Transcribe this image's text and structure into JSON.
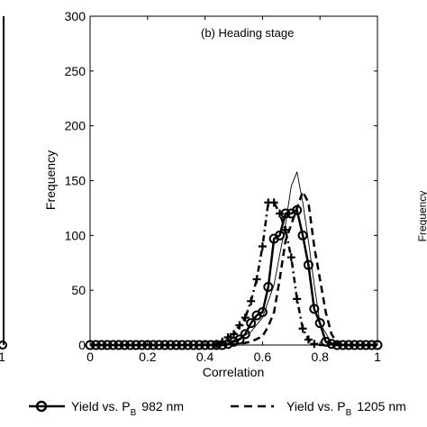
{
  "chart_data": {
    "type": "line",
    "title": "(b) Heading stage",
    "xlabel": "Correlation",
    "ylabel": "Frequency",
    "xlim": [
      0,
      1
    ],
    "ylim": [
      0,
      300
    ],
    "xticks": [
      0,
      0.2,
      0.4,
      0.6,
      0.8,
      1
    ],
    "yticks": [
      0,
      50,
      100,
      150,
      200,
      250,
      300
    ],
    "xtick_labels": [
      "0",
      "0.2",
      "0.4",
      "0.6",
      "0.8",
      "1"
    ],
    "ytick_labels": [
      "0",
      "50",
      "100",
      "150",
      "200",
      "250",
      "300"
    ],
    "grid": false,
    "legend_position": "below",
    "series": [
      {
        "name": "Yield vs. P_B 982 nm",
        "style": "solid-circle",
        "x": [
          0.0,
          0.02,
          0.04,
          0.06,
          0.08,
          0.1,
          0.12,
          0.14,
          0.16,
          0.18,
          0.2,
          0.22,
          0.24,
          0.26,
          0.28,
          0.3,
          0.32,
          0.34,
          0.36,
          0.38,
          0.4,
          0.42,
          0.44,
          0.46,
          0.48,
          0.5,
          0.52,
          0.54,
          0.56,
          0.58,
          0.6,
          0.62,
          0.64,
          0.66,
          0.68,
          0.7,
          0.72,
          0.74,
          0.76,
          0.78,
          0.8,
          0.82,
          0.84,
          0.86,
          0.88,
          0.9,
          0.92,
          0.94,
          0.96,
          0.98,
          1.0
        ],
        "values": [
          0,
          0,
          0,
          0,
          0,
          0,
          0,
          0,
          0,
          0,
          0,
          0,
          0,
          0,
          0,
          0,
          0,
          0,
          0,
          0,
          0,
          0,
          0,
          0,
          1,
          3,
          5,
          10,
          20,
          27,
          30,
          53,
          97,
          100,
          120,
          120,
          123,
          100,
          73,
          33,
          20,
          3,
          1,
          0,
          0,
          0,
          0,
          0,
          0,
          0,
          0
        ]
      },
      {
        "name": "Yield vs. P_B 1205 nm",
        "style": "dashed",
        "x": [
          0.0,
          0.04,
          0.08,
          0.12,
          0.16,
          0.2,
          0.24,
          0.28,
          0.32,
          0.36,
          0.4,
          0.44,
          0.48,
          0.52,
          0.56,
          0.6,
          0.62,
          0.64,
          0.66,
          0.68,
          0.7,
          0.72,
          0.74,
          0.76,
          0.78,
          0.8,
          0.82,
          0.84,
          0.86,
          0.88,
          0.92,
          0.96,
          1.0
        ],
        "values": [
          0,
          0,
          0,
          0,
          0,
          0,
          0,
          0,
          0,
          0,
          0,
          0,
          0,
          1,
          3,
          8,
          17,
          30,
          60,
          95,
          110,
          125,
          140,
          130,
          90,
          60,
          30,
          10,
          2,
          0,
          0,
          0,
          0
        ]
      },
      {
        "name": "",
        "style": "dashdot-plus",
        "x": [
          0.0,
          0.04,
          0.08,
          0.12,
          0.16,
          0.2,
          0.24,
          0.28,
          0.32,
          0.36,
          0.4,
          0.42,
          0.44,
          0.46,
          0.48,
          0.5,
          0.52,
          0.54,
          0.56,
          0.58,
          0.6,
          0.62,
          0.64,
          0.66,
          0.68,
          0.7,
          0.72,
          0.74,
          0.76,
          0.78,
          0.8,
          0.84,
          0.88,
          0.92,
          0.96,
          1.0
        ],
        "values": [
          0,
          0,
          0,
          0,
          0,
          0,
          0,
          0,
          0,
          0,
          0,
          0,
          1,
          3,
          7,
          10,
          18,
          25,
          40,
          60,
          90,
          130,
          130,
          120,
          105,
          80,
          42,
          15,
          5,
          1,
          0,
          0,
          0,
          0,
          0,
          0
        ]
      },
      {
        "name": "",
        "style": "thin-solid",
        "x": [
          0.0,
          0.1,
          0.2,
          0.3,
          0.4,
          0.44,
          0.48,
          0.52,
          0.56,
          0.6,
          0.64,
          0.68,
          0.7,
          0.72,
          0.74,
          0.76,
          0.78,
          0.8,
          0.84,
          0.9,
          1.0
        ],
        "values": [
          0,
          0,
          0,
          0,
          0,
          1,
          3,
          6,
          12,
          25,
          55,
          110,
          145,
          158,
          130,
          95,
          55,
          20,
          2,
          0,
          0
        ]
      }
    ]
  },
  "left_panel": {
    "right_tick_label": "1"
  },
  "right_panel": {
    "ylabel_fragment": "Frequency"
  },
  "legend": {
    "item1_prefix": "Yield vs. P",
    "item1_sub": "B",
    "item1_suffix": "982 nm",
    "item2_prefix": "Yield vs. P",
    "item2_sub": "B",
    "item2_suffix": "1205 nm"
  }
}
